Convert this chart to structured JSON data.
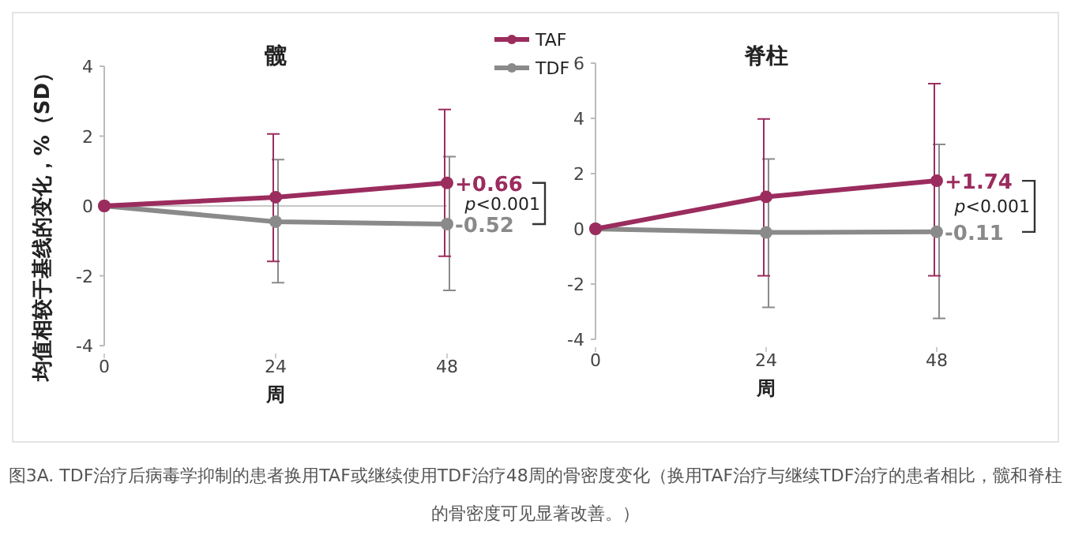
{
  "chart_data": [
    {
      "type": "line",
      "title": "髋",
      "xlabel": "周",
      "ylabel": "均值相较于基线的变化，%（SD）",
      "x": [
        0,
        24,
        48
      ],
      "xlim": [
        0,
        48
      ],
      "xticks": [
        0,
        24,
        48
      ],
      "ylim": [
        -4,
        4
      ],
      "yticks": [
        -4,
        -2,
        0,
        2,
        4
      ],
      "legend": "top right",
      "marker": "circle",
      "line_style": "solid",
      "series": [
        {
          "name": "TAF",
          "color": "#9b2c5e",
          "values": [
            0,
            0.25,
            0.66
          ],
          "errors": [
            null,
            [
              -1.59,
              2.06
            ],
            [
              -1.44,
              2.76
            ]
          ],
          "value_labels": [
            null,
            null,
            "+0.66"
          ]
        },
        {
          "name": "TDF",
          "color": "#8a8a8a",
          "values": [
            0,
            -0.45,
            -0.52
          ],
          "errors": [
            null,
            [
              -2.2,
              1.33
            ],
            [
              -2.42,
              1.41
            ]
          ],
          "value_labels": [
            null,
            null,
            "-0.52"
          ]
        }
      ],
      "ref_lines": [
        {
          "axis": "y",
          "value": 0,
          "color": "#c8c8c8"
        }
      ],
      "annotations": [
        "*p*<0.001",
        "图3A. TDF治疗后病毒学抑制的患者换用TAF或继续使用TDF治疗48周的骨密度变化（换用TAF治疗与继续TDF治疗的患者相比，髋和脊柱的骨密度可见显著改善。）"
      ]
    },
    {
      "type": "line",
      "title": "脊柱",
      "xlabel": "周",
      "x": [
        0,
        24,
        48
      ],
      "xlim": [
        0,
        48
      ],
      "xticks": [
        0,
        24,
        48
      ],
      "ylim": [
        -4,
        6
      ],
      "yticks": [
        -4,
        -2,
        0,
        2,
        4,
        6
      ],
      "marker": "circle",
      "line_style": "solid",
      "series": [
        {
          "color": "#9b2c5e",
          "values": [
            0,
            1.16,
            1.74
          ],
          "errors": [
            null,
            [
              -1.7,
              3.98
            ],
            [
              -1.7,
              5.26
            ]
          ],
          "value_labels": [
            null,
            null,
            "+1.74"
          ]
        },
        {
          "color": "#8a8a8a",
          "values": [
            0,
            -0.13,
            -0.11
          ],
          "errors": [
            null,
            [
              -2.84,
              2.53
            ],
            [
              -3.24,
              3.06
            ]
          ],
          "value_labels": [
            null,
            null,
            "-0.11"
          ]
        }
      ],
      "annotations": [
        "*p*<0.001"
      ]
    }
  ]
}
